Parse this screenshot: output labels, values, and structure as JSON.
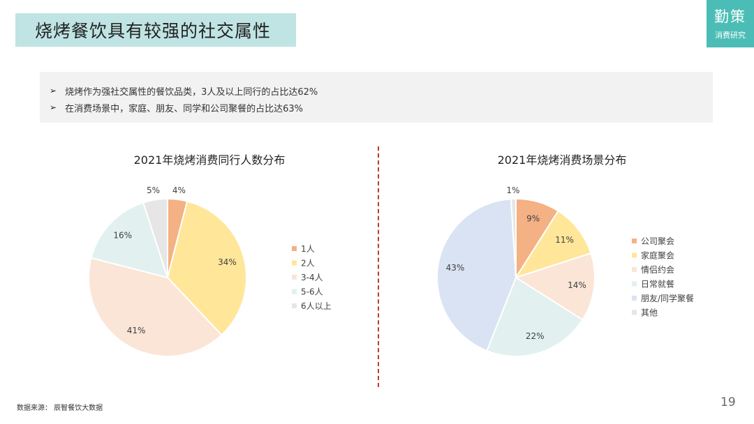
{
  "header": {
    "title": "烧烤餐饮具有较强的社交属性",
    "logo_main": "勤策",
    "logo_sub": "消费研究"
  },
  "summary": {
    "arrow": "➢",
    "lines": [
      "烧烤作为强社交属性的餐饮品类，3人及以上同行的占比达62%",
      "在消费场景中，家庭、朋友、同学和公司聚餐的占比达63%"
    ]
  },
  "chart_data": [
    {
      "type": "pie",
      "title": "2021年烧烤消费同行人数分布",
      "categories": [
        "1人",
        "2人",
        "3-4人",
        "5-6人",
        "6人以上"
      ],
      "values": [
        4,
        34,
        41,
        16,
        5
      ],
      "labels": [
        "4%",
        "34%",
        "41%",
        "16%",
        "5%"
      ],
      "colors": [
        "#f4b183",
        "#ffe699",
        "#fbe5d6",
        "#e2f0f0",
        "#e7e6e6"
      ],
      "legend": "right"
    },
    {
      "type": "pie",
      "title": "2021年烧烤消费场景分布",
      "categories": [
        "公司聚会",
        "家庭聚会",
        "情侣约会",
        "日常就餐",
        "朋友/同学聚餐",
        "其他"
      ],
      "values": [
        9,
        11,
        14,
        22,
        43,
        1
      ],
      "labels": [
        "9%",
        "11%",
        "14%",
        "22%",
        "43%",
        "1%"
      ],
      "colors": [
        "#f4b183",
        "#ffe699",
        "#fbe5d6",
        "#e2f0f0",
        "#dae3f3",
        "#e7e6e6"
      ],
      "legend": "right"
    }
  ],
  "footer": {
    "source": "数据来源：  辰智餐饮大数据",
    "page": "19"
  }
}
